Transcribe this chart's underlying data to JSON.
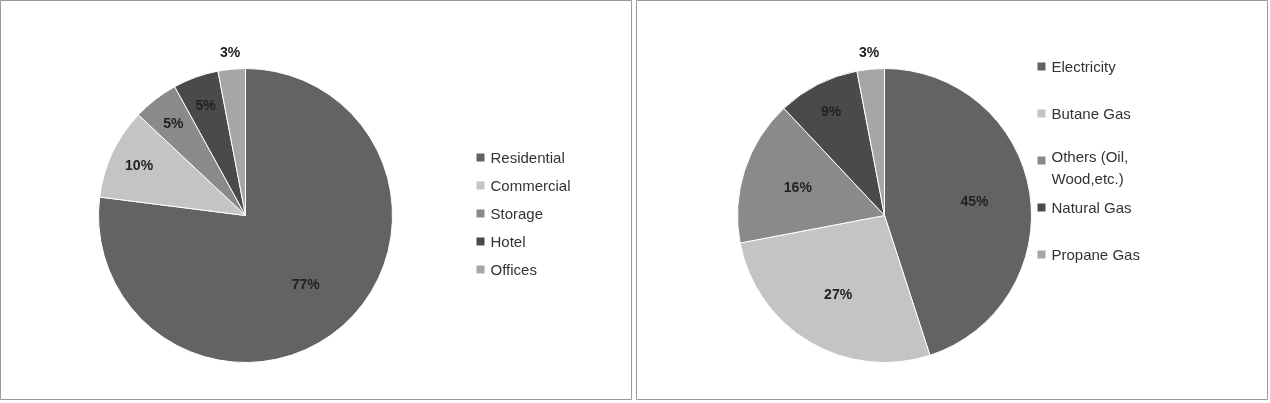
{
  "chart_data": [
    {
      "type": "pie",
      "categories": [
        "Residential",
        "Commercial",
        "Storage",
        "Hotel",
        "Offices"
      ],
      "values": [
        77,
        10,
        5,
        5,
        3
      ],
      "colors": [
        "#636363",
        "#c4c4c4",
        "#8a8a8a",
        "#4a4a4a",
        "#a6a6a6"
      ],
      "value_labels": [
        "77%",
        "10%",
        "5%",
        "5%",
        "3%"
      ],
      "legend": "right"
    },
    {
      "type": "pie",
      "categories": [
        "Electricity",
        "Butane Gas",
        "Others (Oil, Wood,etc.)",
        "Natural Gas",
        "Propane Gas"
      ],
      "values": [
        45,
        27,
        16,
        9,
        3
      ],
      "colors": [
        "#636363",
        "#c4c4c4",
        "#8a8a8a",
        "#4a4a4a",
        "#a6a6a6"
      ],
      "value_labels": [
        "45%",
        "27%",
        "16%",
        "9%",
        "3%"
      ],
      "legend": "right"
    }
  ]
}
